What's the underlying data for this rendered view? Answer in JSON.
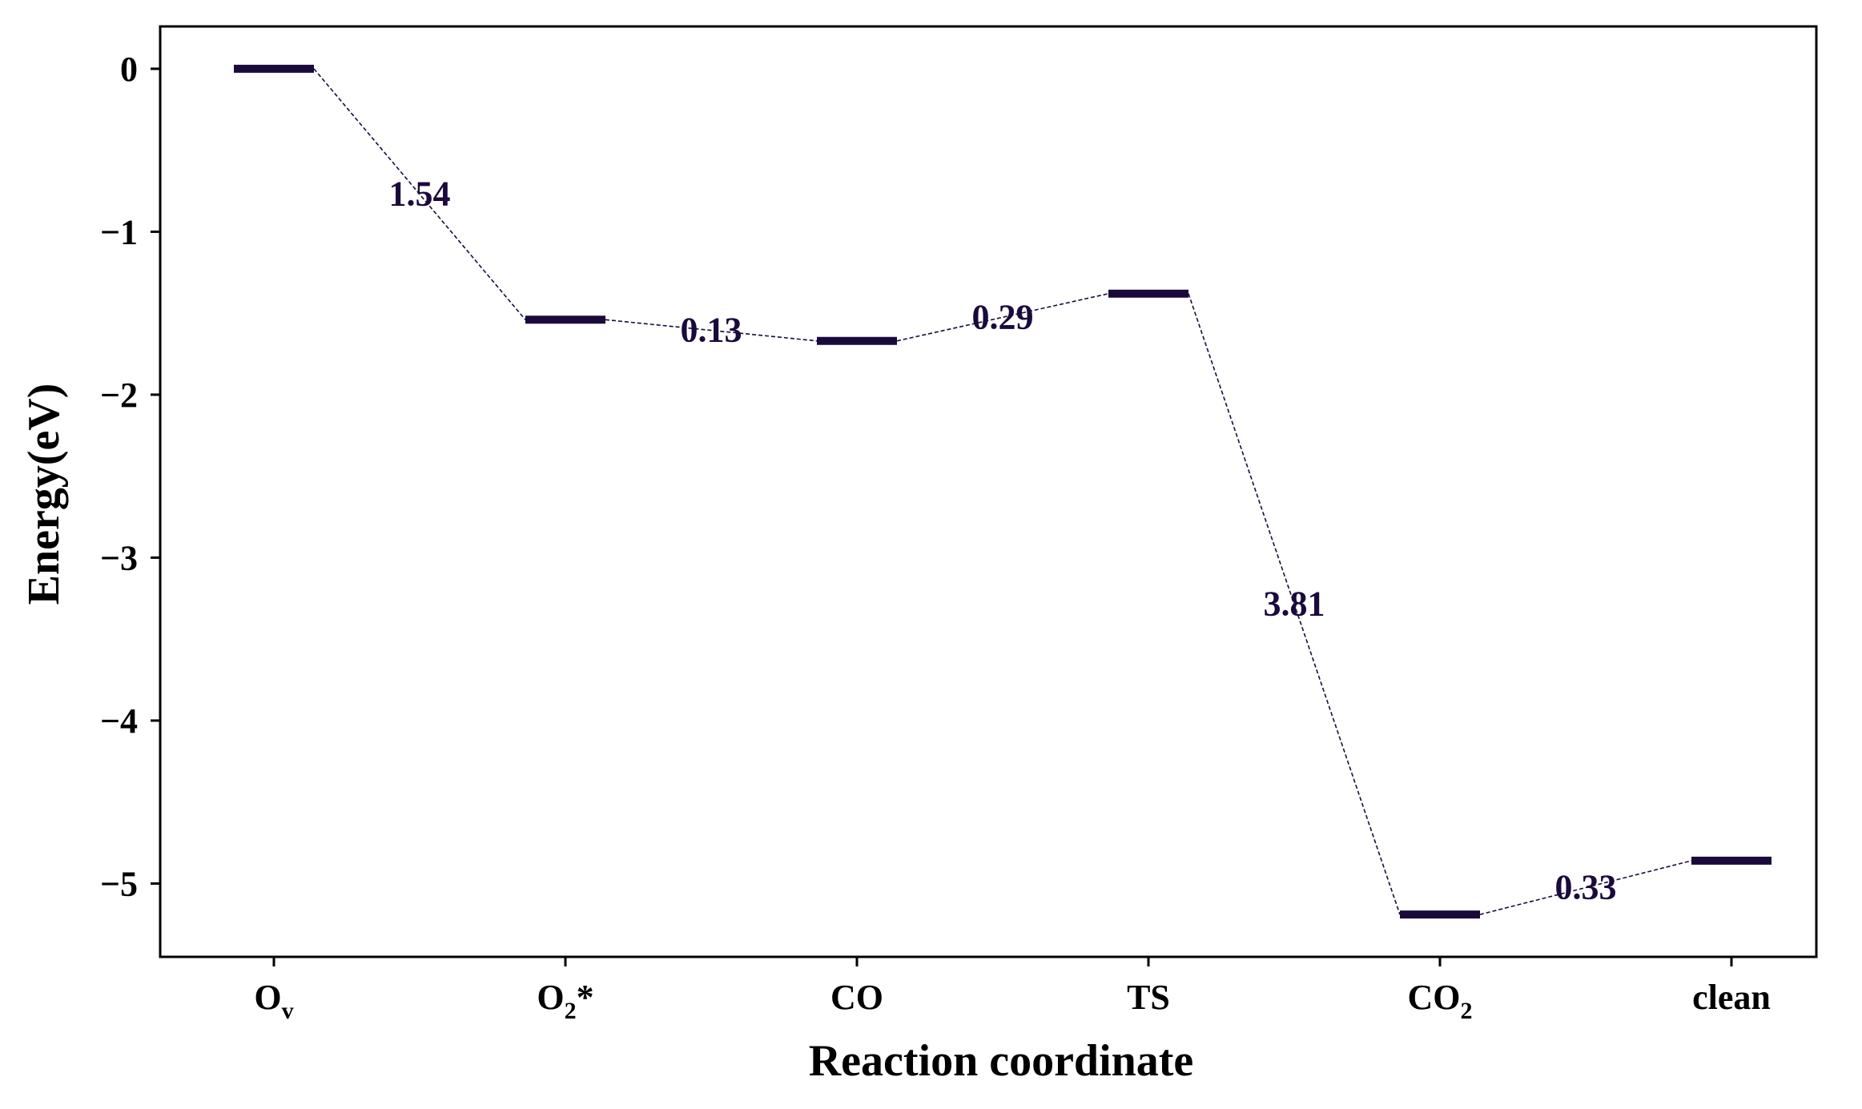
{
  "chart_data": {
    "type": "line",
    "subtype": "energy-level-diagram",
    "xlabel": "Reaction coordinate",
    "ylabel": "Energy(eV)",
    "ylim": [
      -5.45,
      0.26
    ],
    "yticks": [
      0,
      -1,
      -2,
      -3,
      -4,
      -5
    ],
    "ytick_labels": [
      "0",
      "−1",
      "−2",
      "−3",
      "−4",
      "−5"
    ],
    "categories": [
      {
        "main": "O",
        "sub": "v",
        "suffix": ""
      },
      {
        "main": "O",
        "sub": "2",
        "suffix": "*"
      },
      {
        "main": "CO",
        "sub": "",
        "suffix": ""
      },
      {
        "main": "TS",
        "sub": "",
        "suffix": ""
      },
      {
        "main": "CO",
        "sub": "2",
        "suffix": ""
      },
      {
        "main": "clean",
        "sub": "",
        "suffix": ""
      }
    ],
    "levels": [
      0.0,
      -1.54,
      -1.67,
      -1.38,
      -5.19,
      -4.86
    ],
    "differences": [
      "1.54",
      "0.13",
      "0.29",
      "3.81",
      "0.33"
    ],
    "grid": false,
    "legend": "none",
    "line_style": "dashed",
    "color": "#1a0a3c"
  }
}
